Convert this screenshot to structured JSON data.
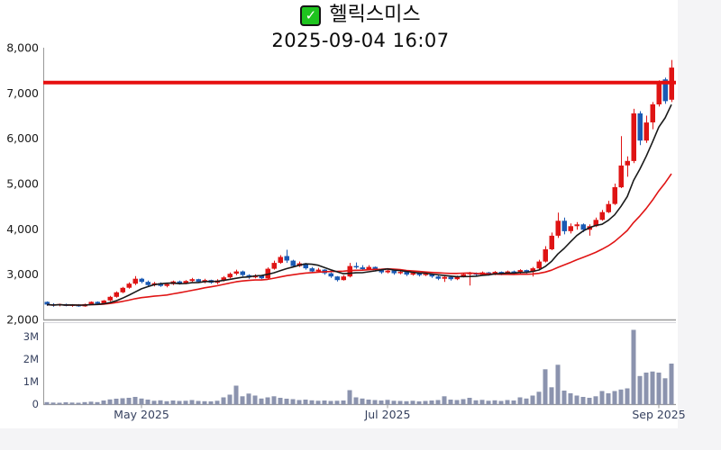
{
  "header": {
    "title": "헬릭스미스",
    "subtitle": "2025-09-04 16:07",
    "check_glyph": "✓"
  },
  "colors": {
    "up": "#df1414",
    "down": "#1a5ab4",
    "ma_fast": "#1a1a1a",
    "ma_slow": "#e01414",
    "ref_line": "#e60f0f",
    "volume": "#8b93ae",
    "axis": "#999999",
    "panel_border": "#d6d6dc",
    "price_label": "#1a1a1a",
    "time_label": "#36415f",
    "check_green": "#1ec41e",
    "page_bg": "#f4f4f6",
    "panel_bg": "#ffffff"
  },
  "chart_data": {
    "type": "candlestick+volume",
    "title": "헬릭스미스",
    "subtitle": "2025-09-04 16:07",
    "ref_line": 7230,
    "price_axis": {
      "min": 2000,
      "max": 8000,
      "ticks": [
        {
          "v": 2000,
          "label": "2,000"
        },
        {
          "v": 3000,
          "label": "3,000"
        },
        {
          "v": 4000,
          "label": "4,000"
        },
        {
          "v": 5000,
          "label": "5,000"
        },
        {
          "v": 6000,
          "label": "6,000"
        },
        {
          "v": 7000,
          "label": "7,000"
        },
        {
          "v": 8000,
          "label": "8,000"
        }
      ]
    },
    "volume_axis": {
      "min": 0,
      "max": 3640000,
      "ticks": [
        {
          "v": 0,
          "label": "0"
        },
        {
          "v": 1000000,
          "label": "1M"
        },
        {
          "v": 2000000,
          "label": "2M"
        },
        {
          "v": 3000000,
          "label": "3M"
        }
      ]
    },
    "x_ticks": [
      {
        "index": 15,
        "label": "May 2025"
      },
      {
        "index": 54,
        "label": "Jul 2025"
      },
      {
        "index": 97,
        "label": "Sep 2025"
      }
    ],
    "ma_lines": [
      {
        "name": "fast-ma",
        "window": 7,
        "color_key": "ma_fast"
      },
      {
        "name": "slow-ma",
        "window": 20,
        "color_key": "ma_slow"
      }
    ],
    "candles": [
      [
        2390,
        2400,
        2300,
        2330
      ],
      [
        2330,
        2360,
        2280,
        2310
      ],
      [
        2310,
        2350,
        2290,
        2340
      ],
      [
        2340,
        2350,
        2290,
        2300
      ],
      [
        2300,
        2340,
        2280,
        2330
      ],
      [
        2330,
        2340,
        2280,
        2290
      ],
      [
        2290,
        2350,
        2280,
        2340
      ],
      [
        2340,
        2400,
        2320,
        2390
      ],
      [
        2390,
        2400,
        2330,
        2350
      ],
      [
        2350,
        2430,
        2340,
        2420
      ],
      [
        2420,
        2520,
        2400,
        2500
      ],
      [
        2500,
        2620,
        2480,
        2600
      ],
      [
        2600,
        2720,
        2580,
        2700
      ],
      [
        2700,
        2820,
        2680,
        2790
      ],
      [
        2790,
        2960,
        2760,
        2900
      ],
      [
        2900,
        2920,
        2800,
        2830
      ],
      [
        2830,
        2860,
        2740,
        2760
      ],
      [
        2760,
        2830,
        2730,
        2800
      ],
      [
        2800,
        2820,
        2720,
        2740
      ],
      [
        2740,
        2800,
        2710,
        2780
      ],
      [
        2780,
        2860,
        2760,
        2840
      ],
      [
        2840,
        2860,
        2770,
        2790
      ],
      [
        2790,
        2870,
        2780,
        2850
      ],
      [
        2850,
        2920,
        2830,
        2890
      ],
      [
        2890,
        2900,
        2810,
        2830
      ],
      [
        2830,
        2900,
        2800,
        2870
      ],
      [
        2870,
        2880,
        2790,
        2810
      ],
      [
        2810,
        2890,
        2780,
        2860
      ],
      [
        2860,
        2960,
        2840,
        2930
      ],
      [
        2930,
        3040,
        2910,
        3010
      ],
      [
        3010,
        3100,
        2980,
        3060
      ],
      [
        3060,
        3080,
        2950,
        2980
      ],
      [
        2980,
        3000,
        2900,
        2930
      ],
      [
        2930,
        3000,
        2910,
        2970
      ],
      [
        2970,
        2980,
        2890,
        2910
      ],
      [
        2910,
        3150,
        2900,
        3120
      ],
      [
        3120,
        3300,
        3100,
        3250
      ],
      [
        3250,
        3420,
        3230,
        3380
      ],
      [
        3400,
        3540,
        3250,
        3300
      ],
      [
        3300,
        3320,
        3150,
        3180
      ],
      [
        3180,
        3280,
        3160,
        3240
      ],
      [
        3240,
        3250,
        3100,
        3130
      ],
      [
        3130,
        3160,
        3030,
        3060
      ],
      [
        3060,
        3140,
        3040,
        3100
      ],
      [
        3100,
        3110,
        2990,
        3020
      ],
      [
        3020,
        3040,
        2920,
        2950
      ],
      [
        2950,
        2960,
        2840,
        2870
      ],
      [
        2870,
        2980,
        2860,
        2950
      ],
      [
        2950,
        3250,
        2930,
        3180
      ],
      [
        3180,
        3260,
        3120,
        3150
      ],
      [
        3150,
        3200,
        3080,
        3110
      ],
      [
        3110,
        3200,
        3090,
        3160
      ],
      [
        3160,
        3170,
        3060,
        3090
      ],
      [
        3090,
        3110,
        3010,
        3040
      ],
      [
        3040,
        3120,
        3020,
        3080
      ],
      [
        3080,
        3090,
        2990,
        3020
      ],
      [
        3020,
        3080,
        3000,
        3050
      ],
      [
        3050,
        3060,
        2960,
        2990
      ],
      [
        2990,
        3060,
        2970,
        3030
      ],
      [
        3030,
        3040,
        2950,
        2980
      ],
      [
        2980,
        3040,
        2960,
        3010
      ],
      [
        3010,
        3020,
        2920,
        2950
      ],
      [
        2950,
        2970,
        2870,
        2900
      ],
      [
        2900,
        2960,
        2830,
        2940
      ],
      [
        2940,
        2950,
        2860,
        2890
      ],
      [
        2890,
        2970,
        2870,
        2950
      ],
      [
        2950,
        3030,
        2930,
        3000
      ],
      [
        3000,
        3050,
        2750,
        3020
      ],
      [
        3020,
        3040,
        2960,
        2990
      ],
      [
        2990,
        3060,
        2970,
        3040
      ],
      [
        3040,
        3050,
        2970,
        3000
      ],
      [
        3000,
        3070,
        2980,
        3050
      ],
      [
        3050,
        3060,
        2980,
        3010
      ],
      [
        3010,
        3080,
        3000,
        3060
      ],
      [
        3060,
        3080,
        3000,
        3030
      ],
      [
        3030,
        3110,
        3010,
        3090
      ],
      [
        3090,
        3100,
        3020,
        3050
      ],
      [
        3050,
        3160,
        2950,
        3130
      ],
      [
        3130,
        3320,
        3110,
        3280
      ],
      [
        3280,
        3620,
        3260,
        3550
      ],
      [
        3550,
        3920,
        3530,
        3850
      ],
      [
        3850,
        4360,
        3800,
        4180
      ],
      [
        4180,
        4250,
        3880,
        3950
      ],
      [
        3950,
        4120,
        3900,
        4060
      ],
      [
        4060,
        4150,
        3980,
        4100
      ],
      [
        4100,
        4120,
        3930,
        3980
      ],
      [
        3980,
        4100,
        3850,
        4060
      ],
      [
        4060,
        4250,
        4040,
        4200
      ],
      [
        4200,
        4420,
        4180,
        4370
      ],
      [
        4370,
        4620,
        4350,
        4550
      ],
      [
        4550,
        5000,
        4530,
        4920
      ],
      [
        4920,
        6050,
        4900,
        5400
      ],
      [
        5400,
        5600,
        5150,
        5500
      ],
      [
        5500,
        6650,
        5450,
        6550
      ],
      [
        6550,
        6600,
        5850,
        5950
      ],
      [
        5950,
        6500,
        5900,
        6350
      ],
      [
        6350,
        6800,
        6200,
        6750
      ],
      [
        6750,
        7280,
        6700,
        7230
      ],
      [
        7300,
        7340,
        6760,
        6820
      ],
      [
        6850,
        7730,
        6800,
        7560
      ]
    ],
    "volumes": [
      90000,
      70000,
      60000,
      80000,
      70000,
      60000,
      90000,
      110000,
      90000,
      160000,
      210000,
      240000,
      260000,
      280000,
      320000,
      250000,
      200000,
      150000,
      170000,
      130000,
      160000,
      140000,
      150000,
      180000,
      140000,
      130000,
      120000,
      150000,
      300000,
      420000,
      820000,
      350000,
      470000,
      380000,
      250000,
      300000,
      350000,
      280000,
      240000,
      220000,
      180000,
      200000,
      170000,
      150000,
      160000,
      140000,
      150000,
      160000,
      620000,
      300000,
      250000,
      200000,
      180000,
      160000,
      190000,
      150000,
      140000,
      130000,
      150000,
      120000,
      140000,
      160000,
      180000,
      350000,
      200000,
      180000,
      220000,
      280000,
      170000,
      190000,
      150000,
      170000,
      140000,
      180000,
      160000,
      300000,
      250000,
      380000,
      550000,
      1550000,
      750000,
      1750000,
      600000,
      480000,
      380000,
      320000,
      280000,
      350000,
      580000,
      480000,
      580000,
      650000,
      700000,
      3300000,
      1250000,
      1400000,
      1450000,
      1400000,
      1150000,
      1800000
    ]
  }
}
